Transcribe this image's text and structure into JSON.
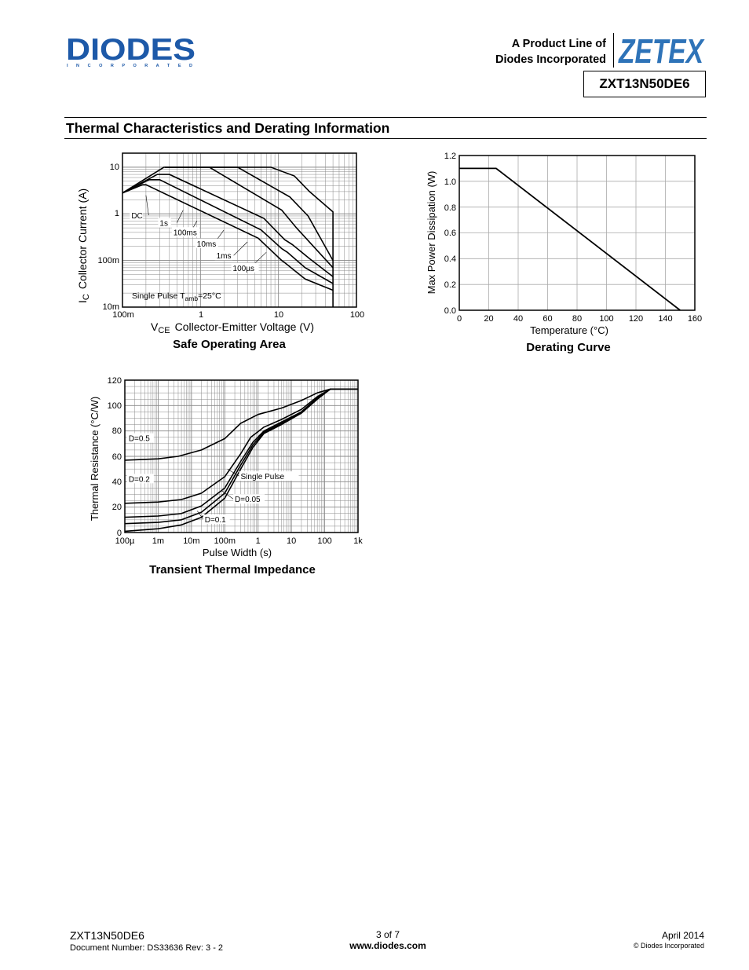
{
  "header": {
    "logo_text": "DIODES",
    "logo_subtext": "I N C O R P O R A T E D",
    "product_line_1": "A Product Line of",
    "product_line_2": "Diodes Incorporated",
    "zetex_logo": "ZETEX",
    "part_number": "ZXT13N50DE6"
  },
  "section_title": "Thermal Characteristics and Derating Information",
  "chart_data": [
    {
      "type": "line",
      "title": "Safe Operating Area",
      "xlabel_sym": "V",
      "xlabel_sub": "CE",
      "xlabel": "Collector-Emitter Voltage (V)",
      "ylabel_sym": "I",
      "ylabel_sub": "C",
      "ylabel": "Collector Current (A)",
      "x_scale": "log",
      "y_scale": "log",
      "xlim": [
        0.1,
        100
      ],
      "ylim": [
        0.01,
        20
      ],
      "x_ticks": [
        "100m",
        "1",
        "10",
        "100"
      ],
      "y_ticks": [
        "10m",
        "100m",
        "1",
        "10"
      ],
      "grid": true,
      "annotation_prefix": "Single Pulse  T",
      "annotation_sub": "amb",
      "annotation_suffix": "=25°C",
      "series": [
        {
          "name": "DC",
          "points": [
            [
              0.1,
              2.8
            ],
            [
              0.18,
              4.2
            ],
            [
              0.2,
              4.2
            ],
            [
              5.5,
              0.3
            ],
            [
              11,
              0.1
            ],
            [
              12,
              0.09
            ],
            [
              22,
              0.04
            ],
            [
              50,
              0.023
            ]
          ]
        },
        {
          "name": "1s",
          "points": [
            [
              0.1,
              2.8
            ],
            [
              0.22,
              5.4
            ],
            [
              0.3,
              5.4
            ],
            [
              6,
              0.45
            ],
            [
              11,
              0.18
            ],
            [
              13,
              0.15
            ],
            [
              22,
              0.07
            ],
            [
              50,
              0.032
            ]
          ]
        },
        {
          "name": "100ms",
          "points": [
            [
              0.1,
              2.8
            ],
            [
              0.28,
              7.0
            ],
            [
              0.4,
              7.0
            ],
            [
              6.5,
              0.8
            ],
            [
              12,
              0.28
            ],
            [
              15,
              0.22
            ],
            [
              25,
              0.11
            ],
            [
              50,
              0.045
            ]
          ]
        },
        {
          "name": "10ms",
          "points": [
            [
              0.1,
              2.8
            ],
            [
              0.34,
              10
            ],
            [
              1.3,
              10
            ],
            [
              11,
              1.2
            ],
            [
              17,
              0.5
            ],
            [
              50,
              0.07
            ]
          ]
        },
        {
          "name": "1ms",
          "points": [
            [
              0.35,
              10
            ],
            [
              3,
              10
            ],
            [
              14,
              2.3
            ],
            [
              24,
              0.9
            ],
            [
              50,
              0.1
            ]
          ]
        },
        {
          "name": "100µs",
          "points": [
            [
              0.35,
              10
            ],
            [
              8,
              10
            ],
            [
              16,
              6.5
            ],
            [
              25,
              3
            ],
            [
              50,
              1.1
            ],
            [
              50,
              0.01
            ]
          ]
        }
      ],
      "curve_labels": [
        "DC",
        "1s",
        "100ms",
        "10ms",
        "1ms",
        "100µs"
      ]
    },
    {
      "type": "line",
      "title": "Derating Curve",
      "xlabel": "Temperature (°C)",
      "ylabel": "Max Power Dissipation (W)",
      "xlim": [
        0,
        160
      ],
      "ylim": [
        0.0,
        1.2
      ],
      "x_ticks": [
        "0",
        "20",
        "40",
        "60",
        "80",
        "100",
        "120",
        "140",
        "160"
      ],
      "y_ticks": [
        "0.0",
        "0.2",
        "0.4",
        "0.6",
        "0.8",
        "1.0",
        "1.2"
      ],
      "grid": true,
      "series": [
        {
          "name": "",
          "points": [
            [
              0,
              1.1
            ],
            [
              25,
              1.1
            ],
            [
              150,
              0.0
            ]
          ]
        }
      ]
    },
    {
      "type": "line",
      "title": "Transient Thermal Impedance",
      "xlabel": "Pulse Width (s)",
      "ylabel": "Thermal Resistance (°C/W)",
      "x_scale": "log",
      "xlim": [
        0.0001,
        1000
      ],
      "ylim": [
        0,
        120
      ],
      "x_ticks": [
        "100µ",
        "1m",
        "10m",
        "100m",
        "1",
        "10",
        "100",
        "1k"
      ],
      "y_ticks": [
        "0",
        "20",
        "40",
        "60",
        "80",
        "100",
        "120"
      ],
      "grid": true,
      "series": [
        {
          "name": "D=0.5",
          "points": [
            [
              0.0001,
              57
            ],
            [
              0.001,
              58
            ],
            [
              0.004,
              60
            ],
            [
              0.02,
              65
            ],
            [
              0.1,
              74
            ],
            [
              0.3,
              86
            ],
            [
              1,
              93
            ],
            [
              5,
              98
            ],
            [
              20,
              104
            ],
            [
              60,
              110
            ],
            [
              150,
              113
            ],
            [
              1000,
              113
            ]
          ]
        },
        {
          "name": "D=0.2",
          "points": [
            [
              0.0001,
              23
            ],
            [
              0.001,
              24
            ],
            [
              0.005,
              26
            ],
            [
              0.02,
              31
            ],
            [
              0.1,
              44
            ],
            [
              0.3,
              62
            ],
            [
              0.6,
              75
            ],
            [
              1.5,
              83
            ],
            [
              5,
              89
            ],
            [
              20,
              97
            ],
            [
              60,
              107
            ],
            [
              150,
              113
            ],
            [
              1000,
              113
            ]
          ]
        },
        {
          "name": "D=0.1",
          "points": [
            [
              0.0001,
              12
            ],
            [
              0.001,
              13
            ],
            [
              0.005,
              15
            ],
            [
              0.02,
              21
            ],
            [
              0.1,
              35
            ],
            [
              0.3,
              56
            ],
            [
              0.7,
              71
            ],
            [
              1.5,
              80
            ],
            [
              5,
              87
            ],
            [
              20,
              95
            ],
            [
              60,
              106
            ],
            [
              150,
              113
            ],
            [
              1000,
              113
            ]
          ]
        },
        {
          "name": "D=0.05",
          "points": [
            [
              0.0001,
              7
            ],
            [
              0.001,
              8
            ],
            [
              0.005,
              10
            ],
            [
              0.02,
              16
            ],
            [
              0.1,
              31
            ],
            [
              0.3,
              53
            ],
            [
              0.7,
              69
            ],
            [
              1.5,
              79
            ],
            [
              5,
              86
            ],
            [
              20,
              95
            ],
            [
              60,
              106
            ],
            [
              150,
              113
            ],
            [
              1000,
              113
            ]
          ]
        },
        {
          "name": "Single Pulse",
          "points": [
            [
              0.0001,
              1
            ],
            [
              0.001,
              3
            ],
            [
              0.005,
              6
            ],
            [
              0.02,
              12
            ],
            [
              0.1,
              27
            ],
            [
              0.3,
              50
            ],
            [
              0.7,
              67
            ],
            [
              1.5,
              78
            ],
            [
              5,
              85
            ],
            [
              20,
              94
            ],
            [
              60,
              105
            ],
            [
              150,
              113
            ],
            [
              1000,
              113
            ]
          ]
        }
      ],
      "curve_labels": [
        "D=0.5",
        "D=0.2",
        "D=0.1",
        "D=0.05",
        "Single Pulse"
      ]
    }
  ],
  "footer": {
    "part": "ZXT13N50DE6",
    "doc_number": "Document Number: DS33636 Rev: 3 - 2",
    "page": "3 of 7",
    "website": "www.diodes.com",
    "date": "April 2014",
    "copyright": "© Diodes Incorporated"
  },
  "colors": {
    "logo_blue": "#1d59a8",
    "zetex_blue": "#2e73b8"
  }
}
